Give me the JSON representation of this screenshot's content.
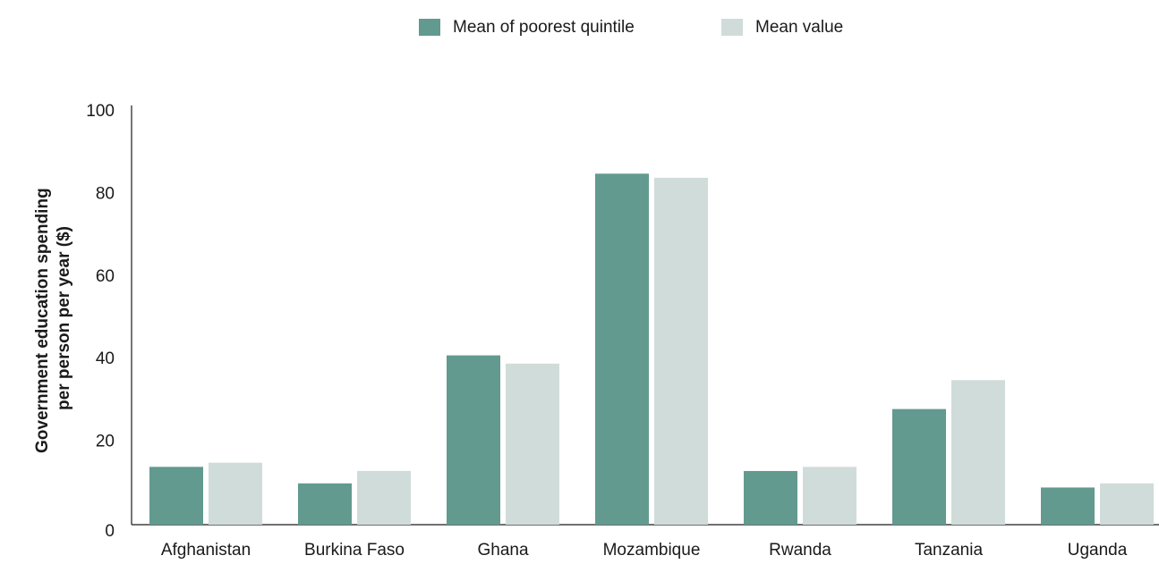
{
  "chart_data": {
    "type": "bar",
    "ylabel": [
      "Government education spending",
      "per person per year ($)"
    ],
    "categories": [
      "Afghanistan",
      "Burkina Faso",
      "Ghana",
      "Mozambique",
      "Rwanda",
      "Tanzania",
      "Uganda"
    ],
    "series": [
      {
        "name": "Mean of poorest quintile",
        "color": "#629a8f",
        "values": [
          14,
          10,
          41,
          85,
          13,
          28,
          9
        ]
      },
      {
        "name": "Mean value",
        "color": "#d0dcd9",
        "values": [
          15,
          13,
          39,
          84,
          14,
          35,
          10
        ]
      }
    ],
    "ylim": [
      0,
      100
    ],
    "yticks": [
      0,
      20,
      40,
      60,
      80,
      100
    ],
    "grid": false,
    "legend": "top"
  }
}
